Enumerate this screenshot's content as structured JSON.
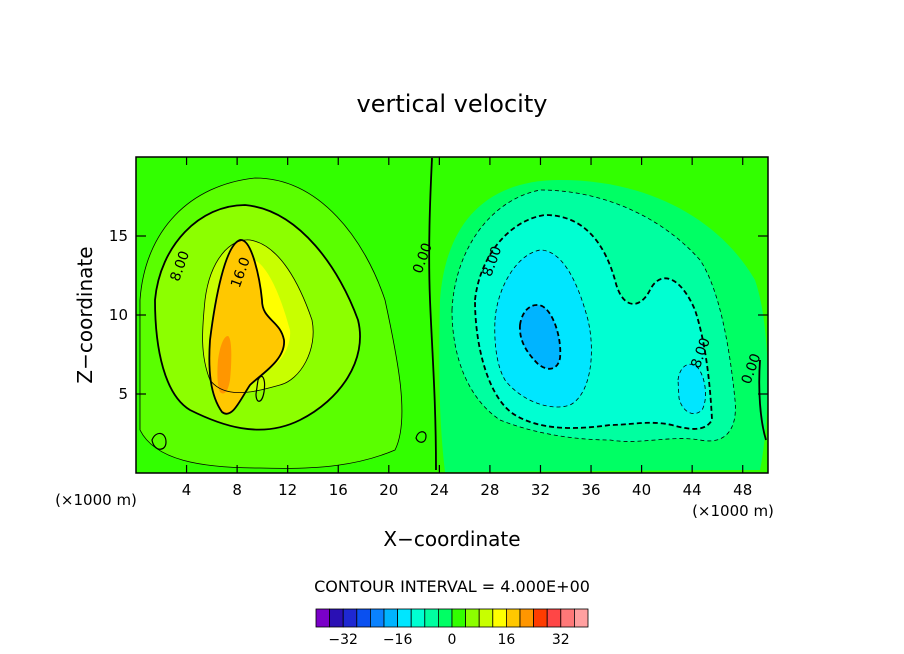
{
  "chart_data": {
    "type": "heatmap",
    "title": "vertical velocity",
    "xlabel": "X−coordinate",
    "ylabel": "Z−coordinate",
    "x_unit": "(×1000 m)",
    "x_unit_right": "(×1000 m)",
    "xlim": [
      0,
      50
    ],
    "ylim": [
      0,
      20
    ],
    "x_ticks": [
      4,
      8,
      12,
      16,
      20,
      24,
      28,
      32,
      36,
      40,
      44,
      48
    ],
    "x_tick_labels": [
      "4",
      "8",
      "12",
      "16",
      "20",
      "24",
      "28",
      "32",
      "36",
      "40",
      "44",
      "48"
    ],
    "y_ticks": [
      5,
      10,
      15
    ],
    "y_tick_labels": [
      "5",
      "10",
      "15"
    ],
    "contour_interval_text": "CONTOUR INTERVAL = 4.000E+00",
    "contour_interval": 4,
    "contour_labels": [
      {
        "text": "8.00",
        "x": 3.8,
        "z": 13
      },
      {
        "text": "16.0",
        "x": 8.6,
        "z": 12.6
      },
      {
        "text": "0.00",
        "x": 23.0,
        "z": 13.5
      },
      {
        "text": "8.00",
        "x": 28.5,
        "z": 13.3
      },
      {
        "text": "8.00",
        "x": 45.0,
        "z": 7.5
      },
      {
        "text": "0.00",
        "x": 49.0,
        "z": 6.5
      }
    ],
    "features": [
      {
        "name": "updraft core",
        "x": 7,
        "z": 7,
        "max_value": 24
      },
      {
        "name": "downdraft core",
        "x": 31,
        "z": 9,
        "min_value": -24
      },
      {
        "name": "secondary downdraft",
        "x": 44,
        "z": 5.5,
        "min_value": -16
      }
    ],
    "colorbar": {
      "levels": [
        -36,
        -32,
        -28,
        -24,
        -20,
        -16,
        -12,
        -8,
        -4,
        0,
        4,
        8,
        12,
        16,
        20,
        24,
        28,
        32,
        36
      ],
      "tick_labels": [
        "−32",
        "−16",
        "0",
        "16",
        "32"
      ],
      "tick_values": [
        -32,
        -16,
        0,
        16,
        32
      ],
      "colors": [
        "#7a00c8",
        "#2a10b4",
        "#1e28d2",
        "#0a50f0",
        "#0a82ff",
        "#00b4ff",
        "#00e6ff",
        "#00ffd2",
        "#00ffa0",
        "#00ff64",
        "#32ff00",
        "#8cff00",
        "#c8ff00",
        "#ffff00",
        "#ffc800",
        "#ff9600",
        "#ff3c00",
        "#ff4646",
        "#ff7878",
        "#ffa0a0"
      ]
    }
  }
}
